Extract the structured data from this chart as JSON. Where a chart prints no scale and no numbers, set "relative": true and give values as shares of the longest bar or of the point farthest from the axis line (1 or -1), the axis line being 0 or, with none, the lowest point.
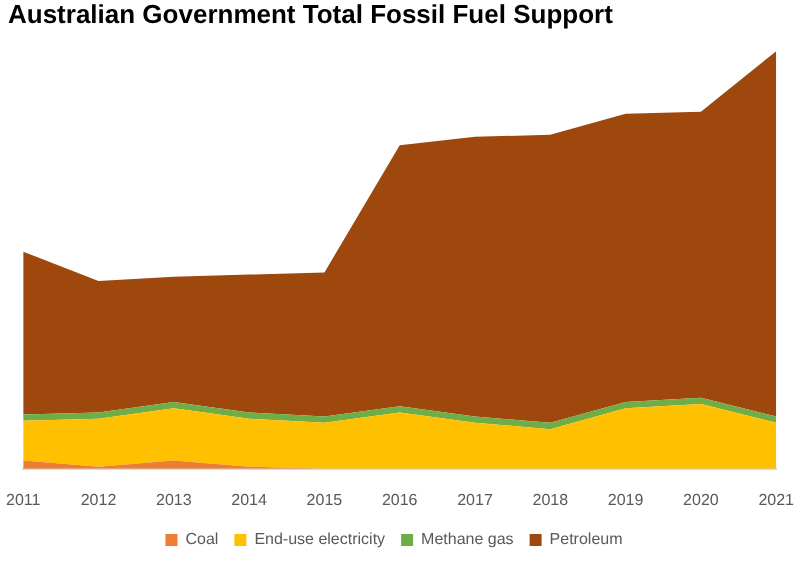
{
  "chart_data": {
    "type": "area",
    "title": "Australian Government Total Fossil Fuel Support",
    "relative": true,
    "stacked": true,
    "legend": "bottom",
    "categories": [
      "2011",
      "2012",
      "2013",
      "2014",
      "2015",
      "2016",
      "2017",
      "2018",
      "2019",
      "2020",
      "2021"
    ],
    "series": [
      {
        "name": "Coal",
        "color": "#ed7d31",
        "values": [
          0.02,
          0.005,
          0.02,
          0.005,
          0,
          0,
          0,
          0,
          0,
          0,
          0
        ]
      },
      {
        "name": "End-use electricity",
        "color": "#ffc000",
        "values": [
          0.095,
          0.115,
          0.125,
          0.115,
          0.11,
          0.135,
          0.11,
          0.095,
          0.145,
          0.155,
          0.11
        ]
      },
      {
        "name": "Methane gas",
        "color": "#70ad47",
        "values": [
          0.015,
          0.015,
          0.015,
          0.015,
          0.015,
          0.015,
          0.015,
          0.015,
          0.015,
          0.015,
          0.015
        ]
      },
      {
        "name": "Petroleum",
        "color": "#9e480e",
        "values": [
          0.39,
          0.315,
          0.3,
          0.33,
          0.345,
          0.625,
          0.67,
          0.69,
          0.69,
          0.685,
          0.875
        ]
      }
    ]
  }
}
